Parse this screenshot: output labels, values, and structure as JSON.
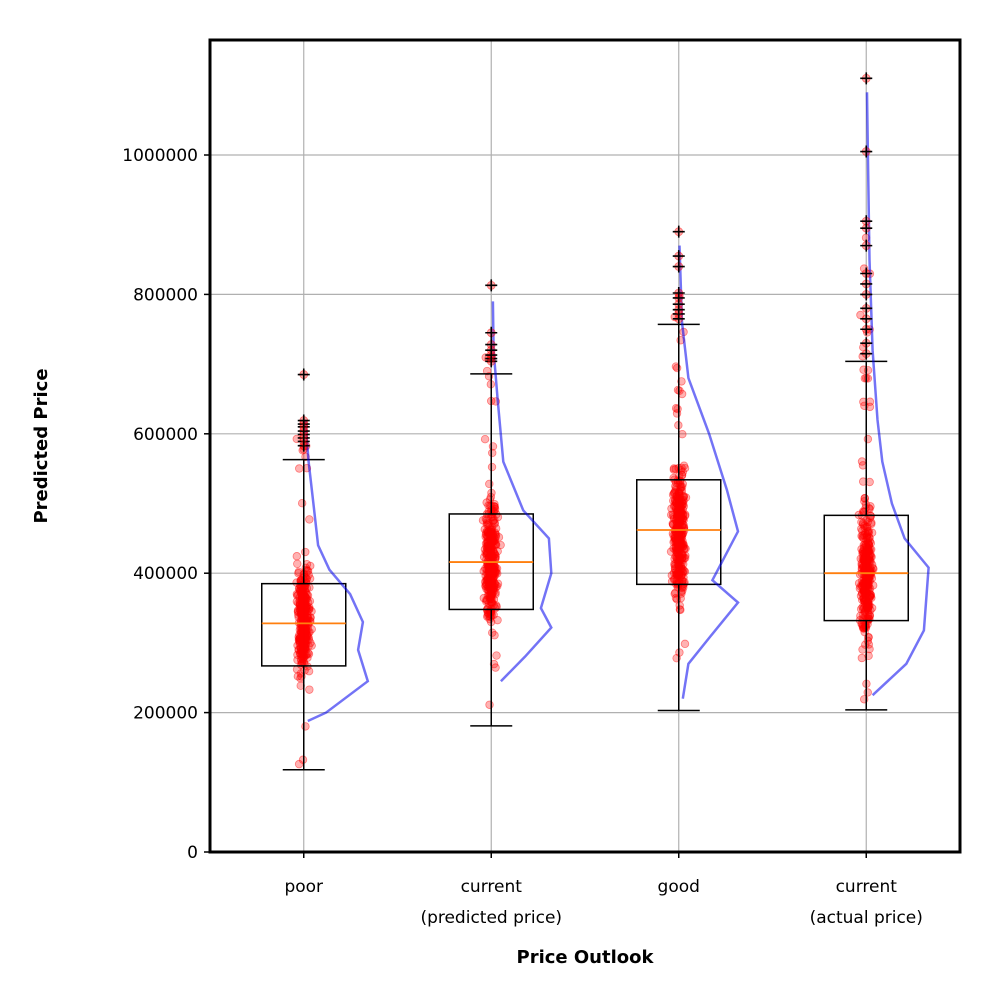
{
  "chart_data": {
    "type": "box",
    "title": "",
    "xlabel": "Price Outlook",
    "ylabel": "Predicted Price",
    "ylim": [
      0,
      1165000
    ],
    "yticks": [
      0,
      200000,
      400000,
      600000,
      800000,
      1000000
    ],
    "grid": true,
    "legend": "none",
    "categories": [
      "poor",
      "current\n(predicted price)",
      "good",
      "current\n(actual price)"
    ],
    "boxes": [
      {
        "category": "poor",
        "whisker_low": 118000,
        "q1": 267000,
        "median": 328000,
        "q3": 385000,
        "whisker_high": 563000,
        "outliers": [
          583000,
          589000,
          594000,
          599000,
          604000,
          610000,
          614000,
          619000,
          685000
        ],
        "points_low": 120000,
        "points_high": 620000,
        "density": [
          [
            188000,
            0.05
          ],
          [
            200000,
            0.28
          ],
          [
            245000,
            0.8
          ],
          [
            290000,
            0.68
          ],
          [
            330000,
            0.74
          ],
          [
            370000,
            0.58
          ],
          [
            405000,
            0.32
          ],
          [
            440000,
            0.18
          ],
          [
            500000,
            0.12
          ],
          [
            560000,
            0.06
          ],
          [
            620000,
            0.02
          ]
        ]
      },
      {
        "category": "current (predicted price)",
        "whisker_low": 181000,
        "q1": 348000,
        "median": 416000,
        "q3": 485000,
        "whisker_high": 686000,
        "outliers": [
          704000,
          708000,
          713000,
          720000,
          728000,
          745000,
          813000
        ],
        "points_low": 190000,
        "points_high": 745000,
        "density": [
          [
            245000,
            0.12
          ],
          [
            280000,
            0.42
          ],
          [
            322000,
            0.75
          ],
          [
            350000,
            0.62
          ],
          [
            400000,
            0.75
          ],
          [
            450000,
            0.72
          ],
          [
            490000,
            0.4
          ],
          [
            560000,
            0.15
          ],
          [
            650000,
            0.08
          ],
          [
            720000,
            0.03
          ],
          [
            790000,
            0.02
          ]
        ]
      },
      {
        "category": "good",
        "whisker_low": 203000,
        "q1": 384000,
        "median": 462000,
        "q3": 534000,
        "whisker_high": 757000,
        "outliers": [
          765000,
          772000,
          778000,
          786000,
          795000,
          802000,
          840000,
          855000,
          890000
        ],
        "points_low": 207000,
        "points_high": 805000,
        "density": [
          [
            220000,
            0.05
          ],
          [
            270000,
            0.12
          ],
          [
            310000,
            0.4
          ],
          [
            358000,
            0.74
          ],
          [
            390000,
            0.42
          ],
          [
            460000,
            0.74
          ],
          [
            520000,
            0.6
          ],
          [
            600000,
            0.38
          ],
          [
            680000,
            0.12
          ],
          [
            760000,
            0.04
          ],
          [
            870000,
            0.01
          ]
        ]
      },
      {
        "category": "current (actual price)",
        "whisker_low": 204000,
        "q1": 332000,
        "median": 400000,
        "q3": 483000,
        "whisker_high": 704000,
        "outliers": [
          715000,
          730000,
          750000,
          765000,
          780000,
          800000,
          815000,
          830000,
          870000,
          895000,
          905000,
          1005000,
          1110000
        ],
        "points_low": 205000,
        "points_high": 905000,
        "density": [
          [
            225000,
            0.08
          ],
          [
            270000,
            0.5
          ],
          [
            318000,
            0.72
          ],
          [
            408000,
            0.78
          ],
          [
            450000,
            0.48
          ],
          [
            500000,
            0.32
          ],
          [
            560000,
            0.2
          ],
          [
            620000,
            0.14
          ],
          [
            720000,
            0.08
          ],
          [
            850000,
            0.04
          ],
          [
            1000000,
            0.02
          ],
          [
            1090000,
            0.01
          ]
        ]
      }
    ],
    "colors": {
      "median": "#ff7f0e",
      "points": "#ff0000",
      "density": "#0000ee",
      "box": "#000000",
      "grid": "#b0b0b0"
    }
  }
}
